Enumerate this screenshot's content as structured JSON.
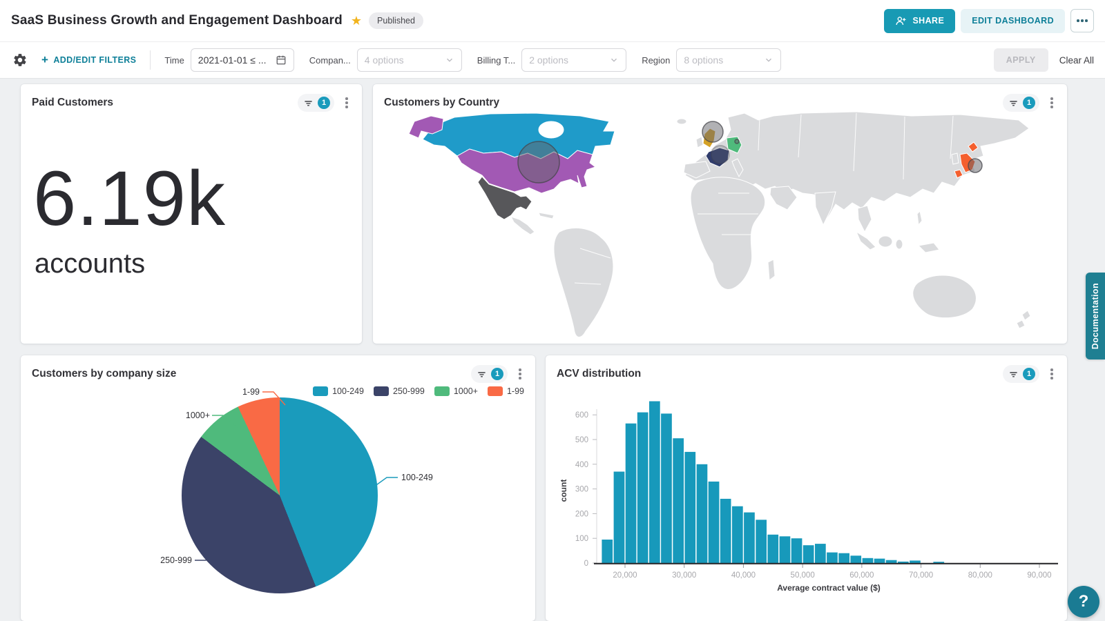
{
  "header": {
    "title": "SaaS Business Growth and Engagement Dashboard",
    "status_badge": "Published",
    "share_label": "SHARE",
    "edit_label": "EDIT DASHBOARD"
  },
  "icons": {
    "star": "★",
    "plus": "+",
    "help": "?"
  },
  "filters": {
    "add_edit_label": "ADD/EDIT FILTERS",
    "apply_label": "APPLY",
    "clear_all_label": "Clear All",
    "groups": [
      {
        "label": "Time",
        "value": "2021-01-01 ≤ ...",
        "type": "date"
      },
      {
        "label": "Compan...",
        "value": "4 options",
        "type": "select"
      },
      {
        "label": "Billing T...",
        "value": "2 options",
        "type": "select"
      },
      {
        "label": "Region",
        "value": "8 options",
        "type": "select"
      }
    ]
  },
  "widgets": {
    "kpi": {
      "title": "Paid Customers",
      "filter_count": "1"
    },
    "map": {
      "title": "Customers by Country",
      "filter_count": "1"
    },
    "pie": {
      "title": "Customers by company size",
      "filter_count": "1"
    },
    "hist": {
      "title": "ACV distribution",
      "filter_count": "1"
    }
  },
  "side": {
    "documentation_label": "Documentation"
  },
  "accent": {
    "teal": "#1a9bbc",
    "brand": "#0d7f98"
  },
  "chart_data": [
    {
      "type": "indicator",
      "title": "Paid Customers",
      "value": 6190,
      "display": "6.19k",
      "unit": "accounts"
    },
    {
      "type": "map",
      "title": "Customers by Country",
      "base_land_color": "#dadbdd",
      "bubble_color": "rgba(100,100,105,0.5)",
      "bubble_stroke": "rgba(70,70,75,0.75)",
      "countries": [
        {
          "id": "canada",
          "name": "Canada",
          "color": "#1f9bc9"
        },
        {
          "id": "usa",
          "name": "United States",
          "color": "#a259b4",
          "bubble": true
        },
        {
          "id": "mexico",
          "name": "Mexico",
          "color": "#57575a"
        },
        {
          "id": "uk",
          "name": "United Kingdom",
          "color": "#d4a125",
          "bubble": true
        },
        {
          "id": "france",
          "name": "France",
          "color": "#303c6b",
          "bubble": true
        },
        {
          "id": "germany",
          "name": "Germany",
          "color": "#4fba7c",
          "bubble": true
        },
        {
          "id": "japan",
          "name": "Japan",
          "color": "#f45f2e",
          "bubble": true
        }
      ]
    },
    {
      "type": "pie",
      "title": "Customers by company size",
      "categories": [
        "100-249",
        "250-999",
        "1000+",
        "1-99"
      ],
      "values_pct": [
        44,
        41.2,
        7.8,
        7
      ],
      "colors": [
        "#1a9bbc",
        "#3b4368",
        "#4fba7c",
        "#f96a45"
      ],
      "legend_position": "top-right"
    },
    {
      "type": "bar",
      "subtype": "histogram",
      "title": "ACV distribution",
      "xlabel": "Average contract value ($)",
      "ylabel": "count",
      "bar_color": "#1799bb",
      "bin_start": 16000,
      "bin_width": 2000,
      "values": [
        95,
        370,
        565,
        610,
        655,
        605,
        505,
        450,
        400,
        330,
        260,
        230,
        205,
        175,
        115,
        108,
        100,
        72,
        78,
        43,
        40,
        30,
        20,
        18,
        12,
        6,
        10,
        0,
        5
      ],
      "x_ticks": [
        20000,
        30000,
        40000,
        50000,
        60000,
        70000,
        80000,
        90000
      ],
      "y_ticks": [
        0,
        100,
        200,
        300,
        400,
        500,
        600
      ],
      "xlim": [
        15500,
        90500
      ],
      "ylim": [
        0,
        660
      ],
      "grid": false
    }
  ]
}
